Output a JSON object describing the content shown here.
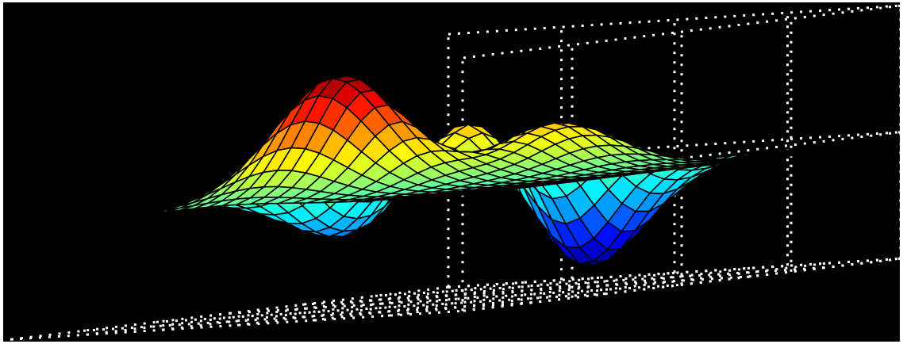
{
  "chart_data": {
    "type": "surface",
    "function": "peaks",
    "x_range": [
      -3,
      3
    ],
    "y_range": [
      -3,
      3
    ],
    "grid_size": 33,
    "z_range": [
      -6.5,
      8.1
    ],
    "colormap": "jet",
    "background": "#000000",
    "edge_color": "#000000",
    "box_grid_color": "#ffffff",
    "grid": "dotted",
    "title": "",
    "xlabel": "",
    "ylabel": "",
    "zlabel": ""
  }
}
